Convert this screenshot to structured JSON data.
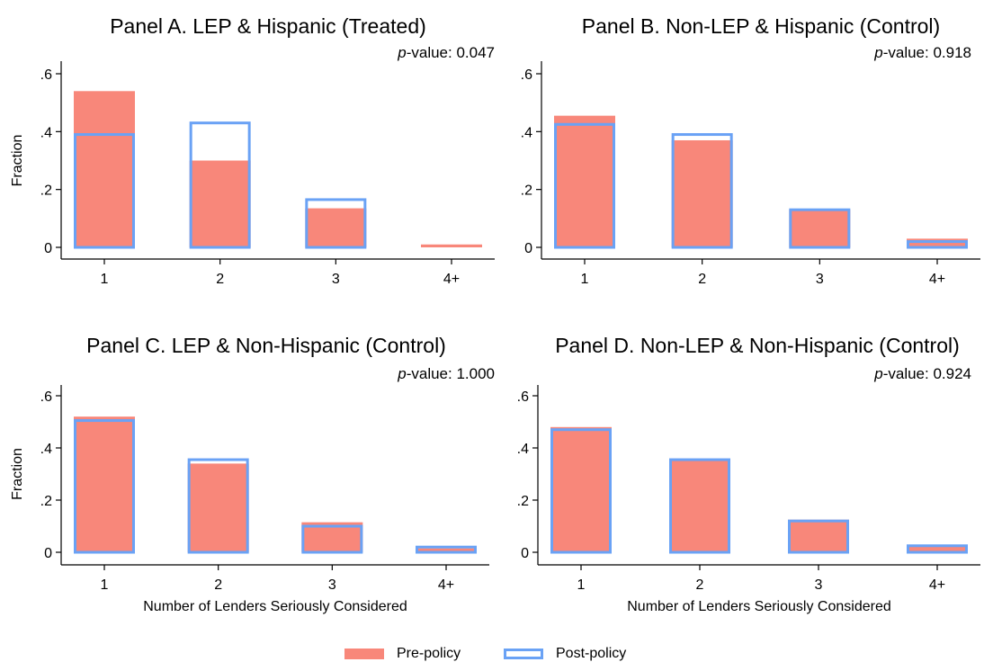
{
  "chart_data": [
    {
      "type": "bar",
      "title": "Panel A. LEP & Hispanic (Treated)",
      "pvalue_prefix": "p",
      "pvalue_rest": "-value: 0.047",
      "ylabel": "Fraction",
      "xlabel": "",
      "categories": [
        "1",
        "2",
        "3",
        "4+"
      ],
      "ylim": [
        0,
        0.6
      ],
      "yticks": [
        "0",
        ".2",
        ".4",
        ".6"
      ],
      "series": [
        {
          "name": "Pre-policy",
          "values": [
            0.54,
            0.3,
            0.135,
            0.01
          ]
        },
        {
          "name": "Post-policy",
          "values": [
            0.39,
            0.43,
            0.165,
            0.0
          ]
        }
      ]
    },
    {
      "type": "bar",
      "title": "Panel B. Non-LEP & Hispanic (Control)",
      "pvalue_prefix": "p",
      "pvalue_rest": "-value: 0.918",
      "ylabel": "",
      "xlabel": "",
      "categories": [
        "1",
        "2",
        "3",
        "4+"
      ],
      "ylim": [
        0,
        0.6
      ],
      "yticks": [
        "0",
        ".2",
        ".4",
        ".6"
      ],
      "series": [
        {
          "name": "Pre-policy",
          "values": [
            0.455,
            0.37,
            0.13,
            0.03
          ]
        },
        {
          "name": "Post-policy",
          "values": [
            0.425,
            0.39,
            0.13,
            0.02
          ]
        }
      ]
    },
    {
      "type": "bar",
      "title": "Panel C. LEP & Non-Hispanic (Control)",
      "pvalue_prefix": "p",
      "pvalue_rest": "-value: 1.000",
      "ylabel": "Fraction",
      "xlabel": "Number of Lenders Seriously Considered",
      "categories": [
        "1",
        "2",
        "3",
        "4+"
      ],
      "ylim": [
        0,
        0.6
      ],
      "yticks": [
        "0",
        ".2",
        ".4",
        ".6"
      ],
      "series": [
        {
          "name": "Pre-policy",
          "values": [
            0.52,
            0.34,
            0.115,
            0.015
          ]
        },
        {
          "name": "Post-policy",
          "values": [
            0.505,
            0.355,
            0.1,
            0.02
          ]
        }
      ]
    },
    {
      "type": "bar",
      "title": "Panel D. Non-LEP & Non-Hispanic (Control)",
      "pvalue_prefix": "p",
      "pvalue_rest": "-value: 0.924",
      "ylabel": "",
      "xlabel": "Number of Lenders Seriously Considered",
      "categories": [
        "1",
        "2",
        "3",
        "4+"
      ],
      "ylim": [
        0,
        0.6
      ],
      "yticks": [
        "0",
        ".2",
        ".4",
        ".6"
      ],
      "series": [
        {
          "name": "Pre-policy",
          "values": [
            0.48,
            0.35,
            0.125,
            0.025
          ]
        },
        {
          "name": "Post-policy",
          "values": [
            0.47,
            0.355,
            0.12,
            0.025
          ]
        }
      ]
    }
  ],
  "legend": {
    "placement": "bottom-center",
    "pre_label": "Pre-policy",
    "post_label": "Post-policy"
  },
  "colors": {
    "pre_fill": "#f8877a",
    "post_outline": "#6aa2f5",
    "axis": "#000000"
  }
}
